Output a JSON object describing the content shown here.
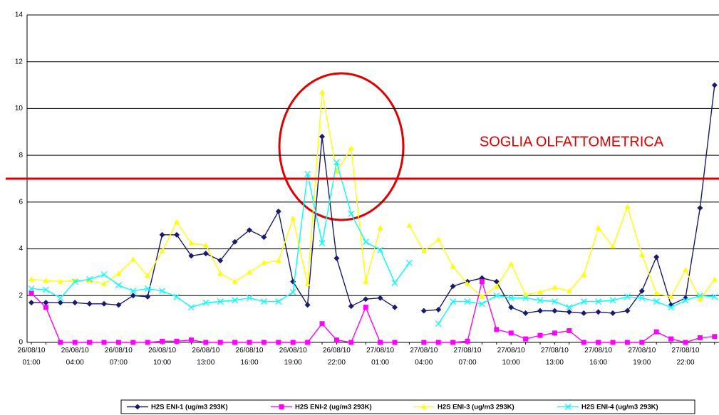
{
  "chart_data": {
    "type": "line",
    "annotation": "SOGLIA OLFATTOMETRICA",
    "threshold": 7,
    "threshold_color": "#e00000",
    "categories": [
      "26/08/10 01:00",
      null,
      null,
      "26/08/10 04:00",
      null,
      null,
      "26/08/10 07:00",
      null,
      null,
      "26/08/10 10:00",
      null,
      null,
      "26/08/10 13:00",
      null,
      null,
      "26/08/10 16:00",
      null,
      null,
      "26/08/10 19:00",
      null,
      null,
      "26/08/10 22:00",
      null,
      null,
      "27/08/10 01:00",
      null,
      null,
      "27/08/10 04:00",
      null,
      null,
      "27/08/10 07:00",
      null,
      null,
      "27/08/10 10:00",
      null,
      null,
      "27/08/10 13:00",
      null,
      null,
      "27/08/10 16:00",
      null,
      null,
      "27/08/10 19:00",
      null,
      null,
      "27/08/10 22:00",
      null,
      null
    ],
    "series": [
      {
        "name": "H2S ENI-1 (ug/m3 293K)",
        "color": "#1a1a6e",
        "marker": "diamond",
        "values": [
          1.7,
          1.7,
          1.7,
          1.7,
          1.65,
          1.65,
          1.6,
          2.0,
          1.95,
          4.6,
          4.6,
          3.7,
          3.8,
          3.5,
          4.3,
          4.8,
          4.5,
          5.6,
          2.6,
          1.6,
          8.8,
          3.6,
          1.55,
          1.85,
          1.9,
          1.5,
          null,
          1.35,
          1.4,
          2.4,
          2.6,
          2.75,
          2.6,
          1.5,
          1.25,
          1.35,
          1.35,
          1.3,
          1.25,
          1.3,
          1.25,
          1.35,
          2.2,
          3.65,
          1.6,
          1.9,
          5.75,
          11
        ]
      },
      {
        "name": "H2S ENI-2 (ug/m3 293K)",
        "color": "#ff00ff",
        "marker": "square",
        "values": [
          2.1,
          1.5,
          0,
          0,
          0,
          0,
          0,
          0,
          0,
          0.05,
          0.05,
          0.1,
          0,
          0,
          0,
          0,
          0,
          0,
          0,
          0,
          0.8,
          0.1,
          0,
          1.5,
          0,
          0,
          null,
          0,
          0,
          0,
          0.05,
          2.6,
          0.55,
          0.4,
          0.15,
          0.3,
          0.4,
          0.5,
          0,
          0,
          0,
          0,
          0,
          0.45,
          0.15,
          0,
          0.2,
          0.25
        ]
      },
      {
        "name": "H2S ENI-3 (ug/m3 293K)",
        "color": "#ffff00",
        "marker": "triangle",
        "values": [
          2.7,
          2.65,
          2.6,
          2.65,
          2.65,
          2.5,
          2.95,
          3.55,
          2.85,
          3.9,
          5.15,
          4.25,
          4.15,
          2.95,
          2.6,
          3.0,
          3.4,
          3.5,
          5.3,
          2.5,
          10.7,
          7.3,
          8.3,
          2.6,
          4.9,
          null,
          5.0,
          3.9,
          4.4,
          3.25,
          2.5,
          1.95,
          2.4,
          3.35,
          2.05,
          2.15,
          2.35,
          2.2,
          2.9,
          4.9,
          4.1,
          5.8,
          3.75,
          2.1,
          1.95,
          3.1,
          1.85,
          2.7
        ]
      },
      {
        "name": "H2S ENI-4 (ug/m3 293K)",
        "color": "#00ffff",
        "marker": "x",
        "values": [
          2.3,
          2.25,
          1.9,
          2.6,
          2.7,
          2.9,
          2.45,
          2.2,
          2.3,
          2.2,
          1.95,
          1.5,
          1.7,
          1.75,
          1.8,
          1.9,
          1.75,
          1.75,
          2.15,
          7.2,
          4.25,
          7.7,
          5.5,
          4.3,
          3.95,
          2.55,
          3.4,
          null,
          0.8,
          1.75,
          1.75,
          1.65,
          2.0,
          1.9,
          1.9,
          1.8,
          1.75,
          1.5,
          1.75,
          1.75,
          1.8,
          1.95,
          1.9,
          1.75,
          1.5,
          1.8,
          2.0,
          1.95
        ]
      }
    ],
    "ylim": [
      0,
      14
    ],
    "yticks": [
      0,
      2,
      4,
      6,
      8,
      10,
      12,
      14
    ],
    "grid": true
  }
}
